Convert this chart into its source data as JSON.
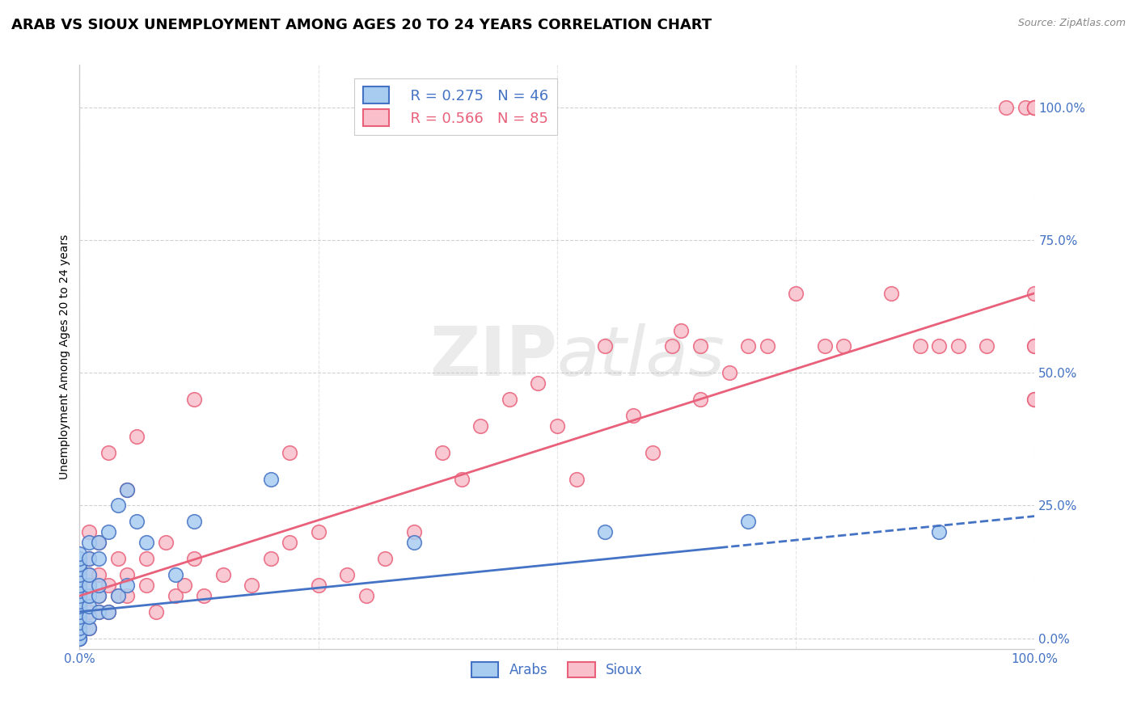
{
  "title": "ARAB VS SIOUX UNEMPLOYMENT AMONG AGES 20 TO 24 YEARS CORRELATION CHART",
  "source": "Source: ZipAtlas.com",
  "ylabel": "Unemployment Among Ages 20 to 24 years",
  "ytick_values": [
    0,
    25,
    50,
    75,
    100
  ],
  "xlim": [
    0,
    100
  ],
  "ylim": [
    -2,
    108
  ],
  "legend_arab_r": "R = 0.275",
  "legend_arab_n": "N = 46",
  "legend_sioux_r": "R = 0.566",
  "legend_sioux_n": "N = 85",
  "arab_face_color": "#A8CCF0",
  "sioux_face_color": "#F9C0CC",
  "arab_line_color": "#4472C4",
  "sioux_line_color": "#E8607A",
  "background_color": "#FFFFFF",
  "grid_color": "#CCCCCC",
  "tick_color": "#4472C4",
  "title_fontsize": 13,
  "axis_label_fontsize": 10,
  "tick_fontsize": 11,
  "arab_solid_end": 68,
  "arab_line_start_x": 0,
  "arab_line_start_y": 5,
  "arab_line_end_x": 100,
  "arab_line_end_y": 23,
  "sioux_line_start_x": 0,
  "sioux_line_start_y": 8,
  "sioux_line_end_x": 100,
  "sioux_line_end_y": 65,
  "arab_x": [
    0,
    0,
    0,
    0,
    0,
    0,
    0,
    0,
    0,
    0,
    0,
    0,
    0,
    0,
    0,
    0,
    0,
    0,
    1,
    1,
    1,
    1,
    1,
    1,
    1,
    1,
    2,
    2,
    2,
    2,
    2,
    3,
    3,
    4,
    4,
    5,
    5,
    6,
    7,
    10,
    12,
    20,
    35,
    55,
    70,
    90
  ],
  "arab_y": [
    0,
    0,
    1,
    2,
    3,
    4,
    5,
    6,
    7,
    8,
    9,
    10,
    11,
    12,
    13,
    14,
    15,
    16,
    2,
    4,
    6,
    8,
    10,
    12,
    15,
    18,
    5,
    8,
    10,
    15,
    18,
    5,
    20,
    8,
    25,
    10,
    28,
    22,
    18,
    12,
    22,
    30,
    18,
    20,
    22,
    20
  ],
  "sioux_x": [
    0,
    0,
    0,
    0,
    0,
    0,
    0,
    0,
    1,
    1,
    1,
    1,
    1,
    1,
    1,
    2,
    2,
    2,
    2,
    3,
    3,
    3,
    4,
    4,
    5,
    5,
    5,
    6,
    7,
    7,
    8,
    9,
    10,
    11,
    12,
    12,
    13,
    15,
    18,
    20,
    22,
    22,
    25,
    25,
    28,
    30,
    32,
    35,
    38,
    40,
    42,
    45,
    48,
    50,
    52,
    55,
    58,
    60,
    62,
    63,
    65,
    65,
    68,
    70,
    72,
    75,
    78,
    80,
    85,
    88,
    90,
    92,
    95,
    97,
    99,
    100,
    100,
    100,
    100,
    100,
    100,
    100,
    100,
    100,
    100
  ],
  "sioux_y": [
    0,
    1,
    2,
    3,
    5,
    8,
    10,
    15,
    2,
    5,
    8,
    10,
    12,
    15,
    20,
    5,
    8,
    12,
    18,
    5,
    10,
    35,
    8,
    15,
    8,
    12,
    28,
    38,
    10,
    15,
    5,
    18,
    8,
    10,
    15,
    45,
    8,
    12,
    10,
    15,
    18,
    35,
    10,
    20,
    12,
    8,
    15,
    20,
    35,
    30,
    40,
    45,
    48,
    40,
    30,
    55,
    42,
    35,
    55,
    58,
    45,
    55,
    50,
    55,
    55,
    65,
    55,
    55,
    65,
    55,
    55,
    55,
    55,
    100,
    100,
    65,
    100,
    100,
    100,
    55,
    55,
    45,
    45,
    100,
    100
  ]
}
